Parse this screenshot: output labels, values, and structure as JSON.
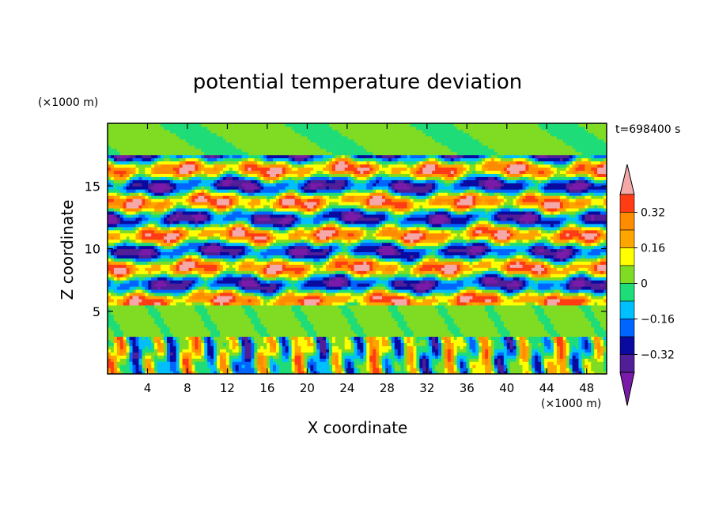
{
  "chart_data": {
    "type": "heatmap",
    "title": "potential temperature deviation",
    "time_label": "t=698400 s",
    "xlabel": "X coordinate",
    "ylabel": "Z coordinate",
    "x_unit": "(×1000 m)",
    "y_unit": "(×1000 m)",
    "xlim": [
      0,
      50
    ],
    "ylim": [
      0,
      20
    ],
    "x_ticks": [
      4,
      8,
      12,
      16,
      20,
      24,
      28,
      32,
      36,
      40,
      44,
      48
    ],
    "y_ticks": [
      5,
      10,
      15
    ],
    "colorbar": {
      "levels": [
        -0.4,
        -0.32,
        -0.24,
        -0.16,
        -0.08,
        0,
        0.08,
        0.16,
        0.24,
        0.32,
        0.4
      ],
      "tick_values": [
        0.32,
        0.16,
        0,
        -0.16,
        -0.32
      ],
      "tick_labels": [
        "0.32",
        "0.16",
        "0",
        "−0.16",
        "−0.32"
      ],
      "colors_high_to_low": [
        "#f4a8a8",
        "#ff3c14",
        "#ff8c00",
        "#ffa500",
        "#ffff00",
        "#7fdc23",
        "#1edc78",
        "#00bfff",
        "#0064ff",
        "#0a0aa0",
        "#501e96",
        "#7a1aa8"
      ],
      "extends": "both"
    },
    "bands": [
      {
        "z_from": 0,
        "z_to": 3,
        "description": "strong vertical pattern"
      },
      {
        "z_from": 3,
        "z_to": 5.5,
        "description": "near-zero layer"
      },
      {
        "z_from": 5.5,
        "z_to": 17.5,
        "description": "strong alternating pattern"
      },
      {
        "z_from": 17.5,
        "z_to": 20,
        "description": "weak"
      }
    ]
  }
}
